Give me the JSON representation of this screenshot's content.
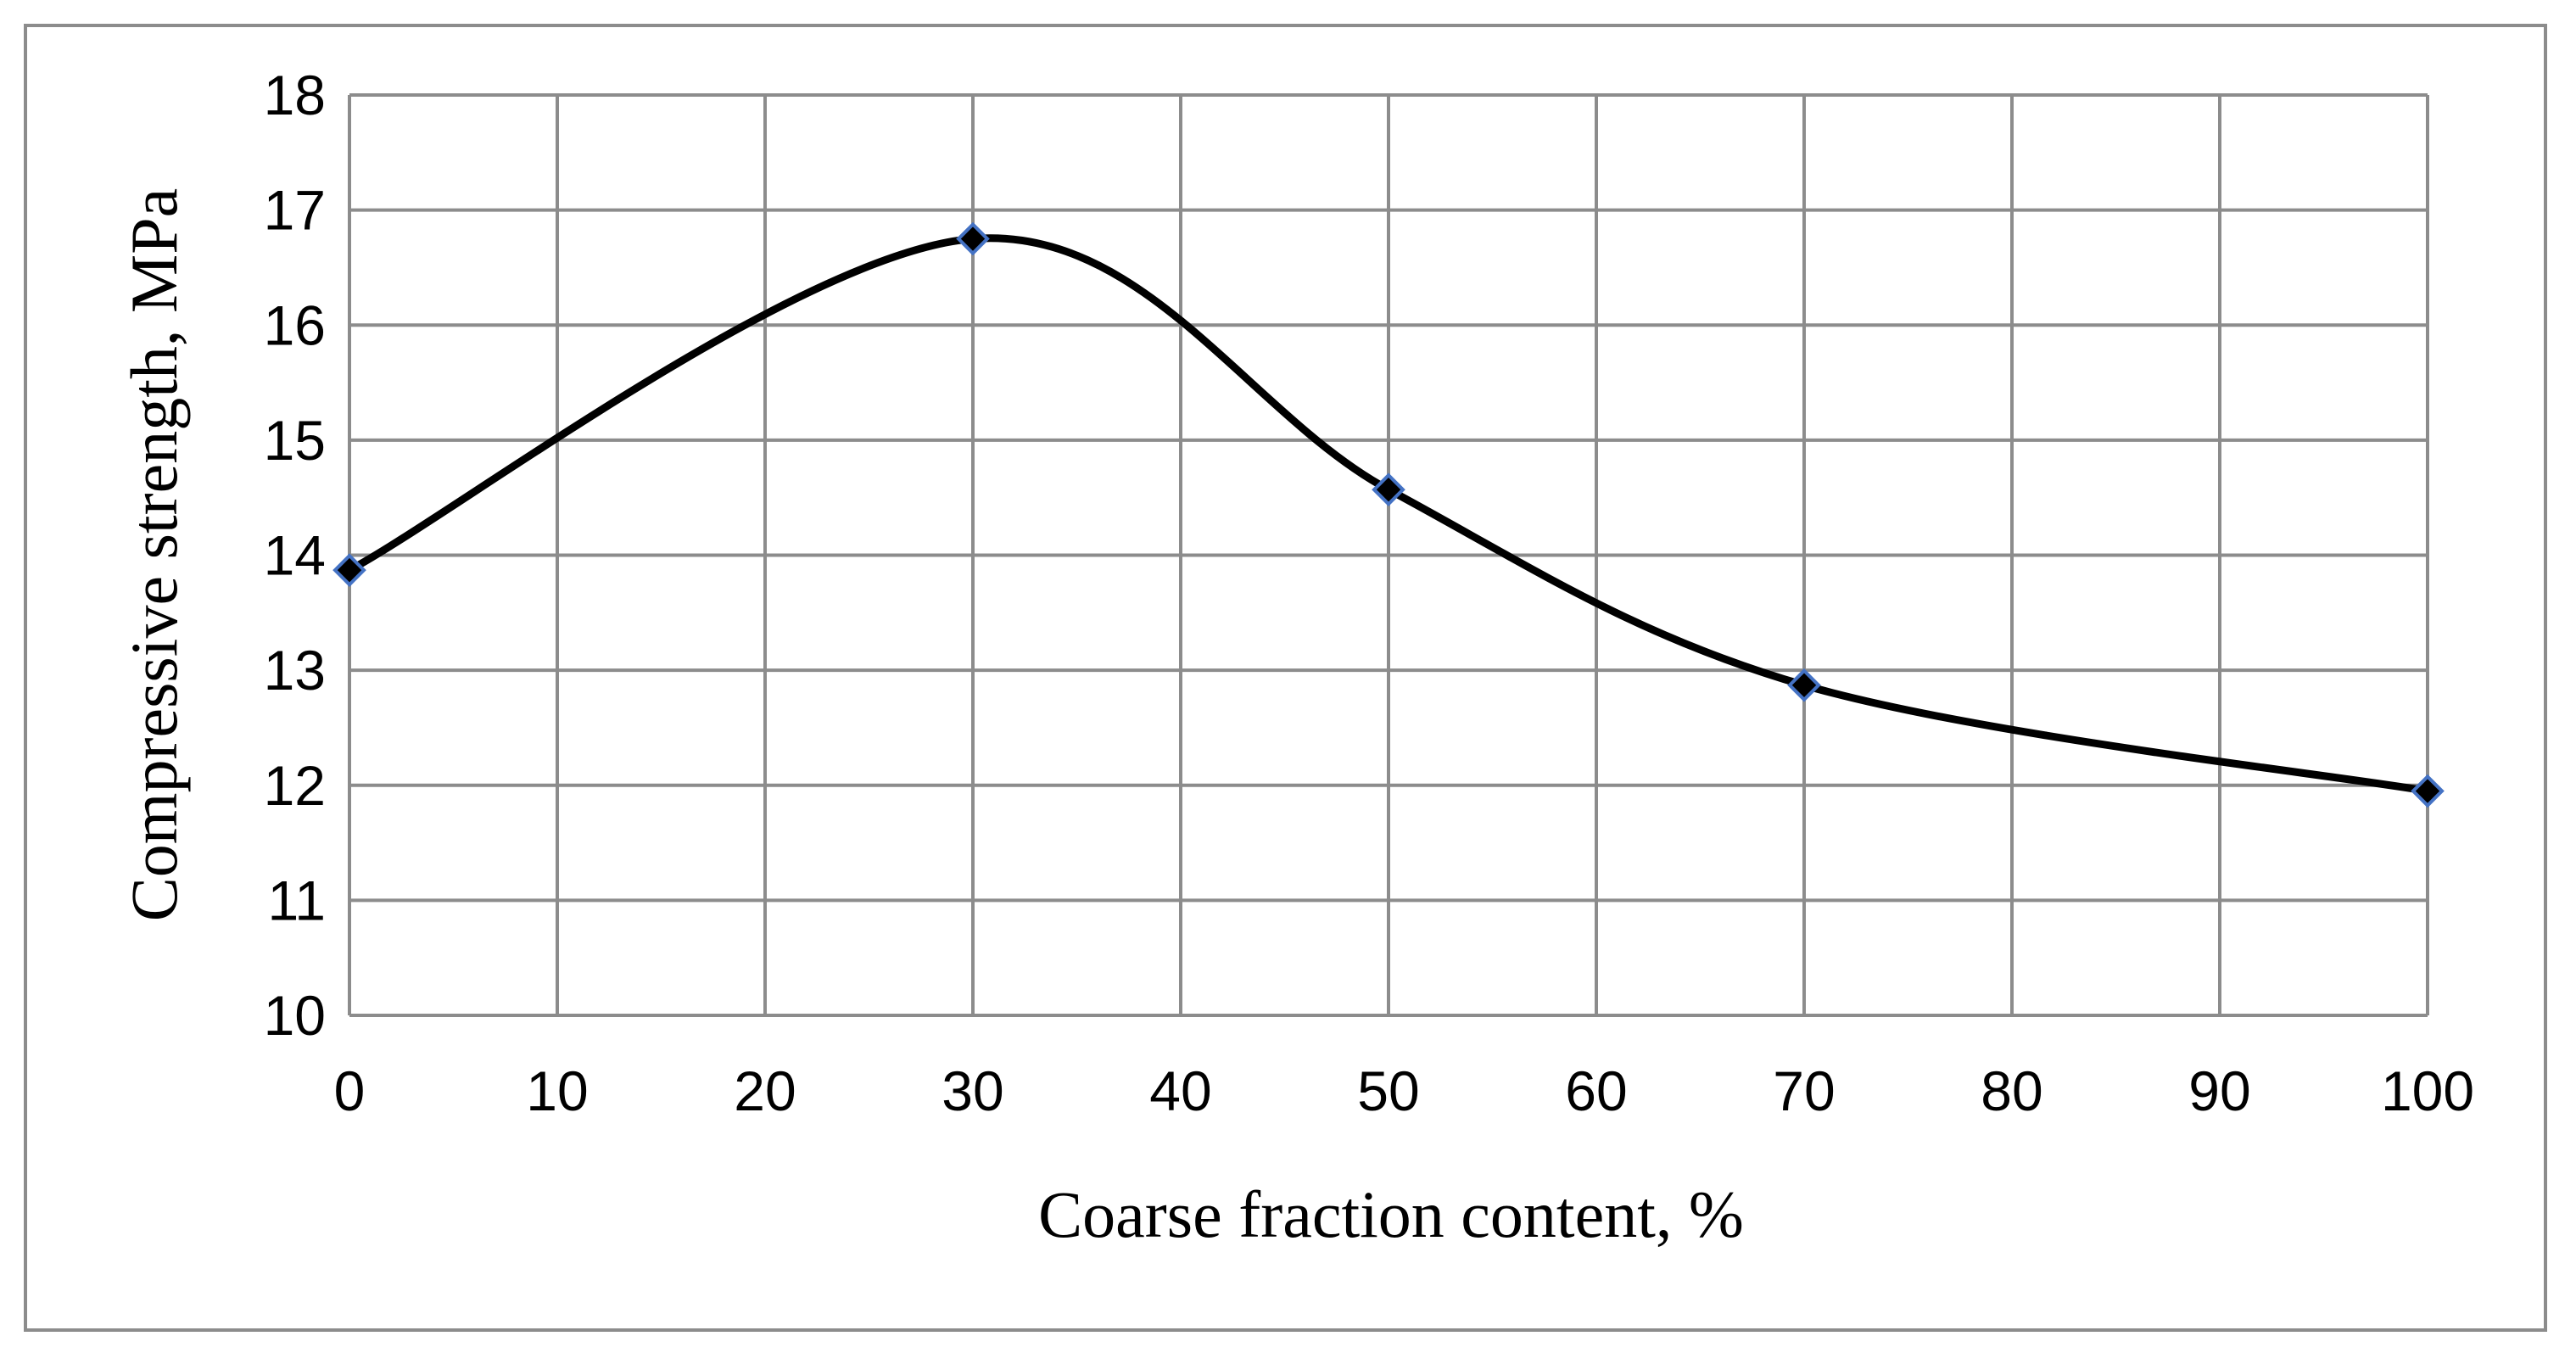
{
  "chart_data": {
    "type": "line",
    "title": "",
    "xlabel": "Coarse fraction content, %",
    "ylabel": "Compressive strength, MPa",
    "xlim": [
      0,
      100
    ],
    "ylim": [
      10,
      18
    ],
    "x_ticks": [
      0,
      10,
      20,
      30,
      40,
      50,
      60,
      70,
      80,
      90,
      100
    ],
    "y_ticks": [
      10,
      11,
      12,
      13,
      14,
      15,
      16,
      17,
      18
    ],
    "grid": true,
    "smoothed": true,
    "marker": "diamond",
    "series": [
      {
        "x": [
          0,
          30,
          50,
          70,
          100
        ],
        "values": [
          13.87,
          16.75,
          14.57,
          12.87,
          11.95
        ]
      }
    ],
    "colors": {
      "line": "#000000",
      "marker_fill": "#000000",
      "marker_edge": "#4472c4",
      "grid": "#8c8c8c",
      "frame": "#8c8c8c"
    }
  }
}
